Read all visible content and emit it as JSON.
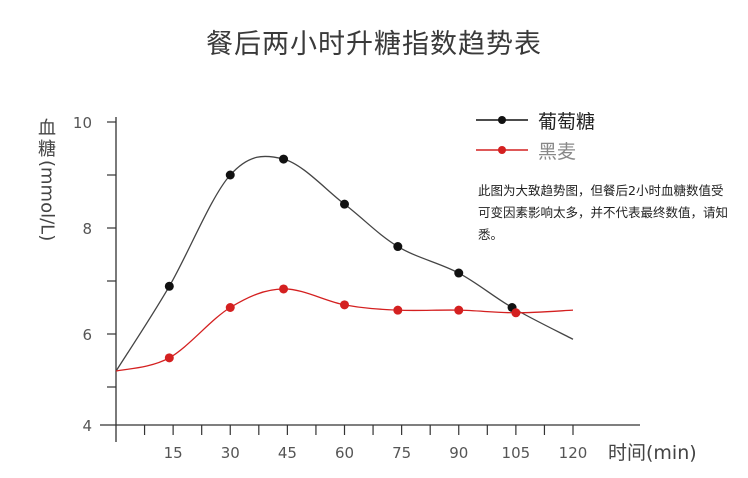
{
  "title": "餐后两小时升糖指数趋势表",
  "colors": {
    "glucose": "#111111",
    "rye": "#d42020",
    "axis": "#333333"
  },
  "legend": [
    {
      "label": "葡萄糖",
      "color": "#111111"
    },
    {
      "label": "黑麦",
      "color": "#d42020"
    }
  ],
  "note": "此图为大致趋势图，但餐后2小时血糖数值受可变因素影响太多，并不代表最终数值，请知悉。",
  "axes": {
    "ylabel_char1": "血",
    "ylabel_char2": "糖",
    "ylabel_unit": "(mmol/L)",
    "xlabel": "时间(min)"
  },
  "chart_data": {
    "type": "line",
    "title": "餐后两小时升糖指数趋势表",
    "xlabel": "时间(min)",
    "ylabel": "血糖(mmol/L)",
    "x_ticks": [
      15,
      30,
      45,
      60,
      75,
      90,
      105,
      120
    ],
    "y_ticks": [
      4,
      6,
      8,
      10
    ],
    "ylim": [
      4,
      10
    ],
    "xlim": [
      0,
      120
    ],
    "grid": false,
    "legend_position": "upper right",
    "annotation": "此图为大致趋势图，但餐后2小时血糖数值受可变因素影响太多，并不代表最终数值，请知悉。",
    "series": [
      {
        "name": "葡萄糖",
        "color": "#111111",
        "x": [
          0,
          14,
          30,
          44,
          60,
          74,
          90,
          104,
          120
        ],
        "values": [
          5.3,
          6.9,
          9.0,
          9.3,
          8.45,
          7.65,
          7.15,
          6.5,
          5.9
        ],
        "markers_at": [
          14,
          30,
          44,
          60,
          74,
          90,
          104
        ]
      },
      {
        "name": "黑麦",
        "color": "#d42020",
        "x": [
          0,
          14,
          30,
          44,
          60,
          74,
          90,
          105,
          120
        ],
        "values": [
          5.3,
          5.55,
          6.5,
          6.85,
          6.55,
          6.45,
          6.45,
          6.4,
          6.45
        ],
        "markers_at": [
          14,
          30,
          44,
          60,
          74,
          90,
          105
        ]
      }
    ]
  }
}
